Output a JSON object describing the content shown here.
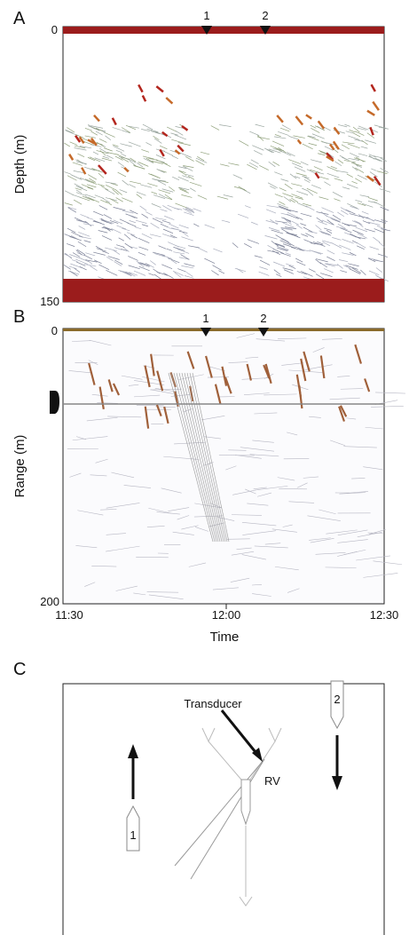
{
  "panels": {
    "a": {
      "label": "A",
      "y_axis": {
        "title": "Depth (m)",
        "ticks": [
          "0",
          "150"
        ]
      },
      "markers": [
        "1",
        "2"
      ]
    },
    "b": {
      "label": "B",
      "y_axis": {
        "title": "Range (m)",
        "ticks": [
          "0",
          "200"
        ]
      },
      "markers": [
        "1",
        "2"
      ],
      "x_axis": {
        "title": "Time",
        "ticks": [
          "11:30",
          "12:00",
          "12:30"
        ]
      }
    },
    "c": {
      "label": "C",
      "annotations": {
        "transducer": "Transducer",
        "rv": "RV"
      },
      "boats": [
        "1",
        "2"
      ]
    }
  }
}
